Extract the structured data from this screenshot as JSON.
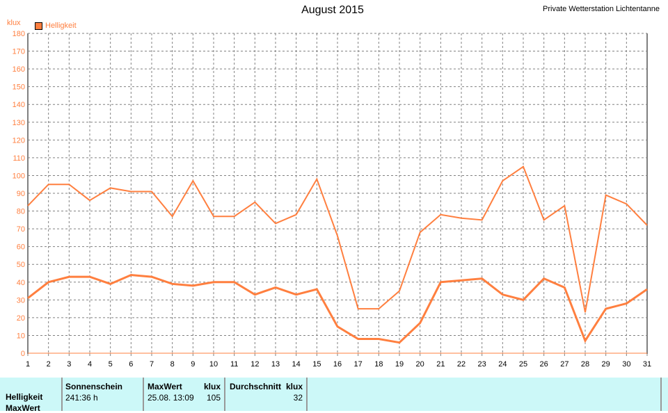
{
  "header": {
    "title": "August 2015",
    "station": "Private Wetterstation Lichtentanne"
  },
  "chart_data": {
    "type": "line",
    "title": "August 2015",
    "ylabel": "klux",
    "ylim": [
      0,
      180
    ],
    "yticks": [
      0,
      10,
      20,
      30,
      40,
      50,
      60,
      70,
      80,
      90,
      100,
      110,
      120,
      130,
      140,
      150,
      160,
      170,
      180
    ],
    "x": [
      1,
      2,
      3,
      4,
      5,
      6,
      7,
      8,
      9,
      10,
      11,
      12,
      13,
      14,
      15,
      16,
      17,
      18,
      19,
      20,
      21,
      22,
      23,
      24,
      25,
      26,
      27,
      28,
      29,
      30,
      31
    ],
    "grid": true,
    "legend": {
      "entries": [
        "Helligkeit"
      ],
      "placement": "top-left"
    },
    "color": "#ff7f3f",
    "series": [
      {
        "name": "Helligkeit MaxWert",
        "values": [
          83,
          95,
          95,
          86,
          93,
          91,
          91,
          77,
          97,
          77,
          77,
          85,
          73,
          78,
          98,
          66,
          25,
          25,
          35,
          68,
          78,
          76,
          75,
          97,
          105,
          75,
          83,
          23,
          89,
          84,
          72
        ]
      },
      {
        "name": "Helligkeit Durchschnitt",
        "values": [
          31,
          40,
          43,
          43,
          39,
          44,
          43,
          39,
          38,
          40,
          40,
          33,
          37,
          33,
          36,
          15,
          8,
          8,
          6,
          17,
          40,
          41,
          42,
          33,
          30,
          42,
          37,
          7,
          25,
          28,
          36
        ]
      }
    ]
  },
  "table": {
    "row_label": "Helligkeit",
    "row_label2": "MaxWert",
    "sun_header": "Sonnenschein",
    "sun_value": "241:36 h",
    "max_header": "MaxWert",
    "max_unit": "klux",
    "max_date": "25.08.  13:09",
    "max_value": "105",
    "avg_header": "Durchschnitt",
    "avg_unit": "klux",
    "avg_value": "32"
  }
}
